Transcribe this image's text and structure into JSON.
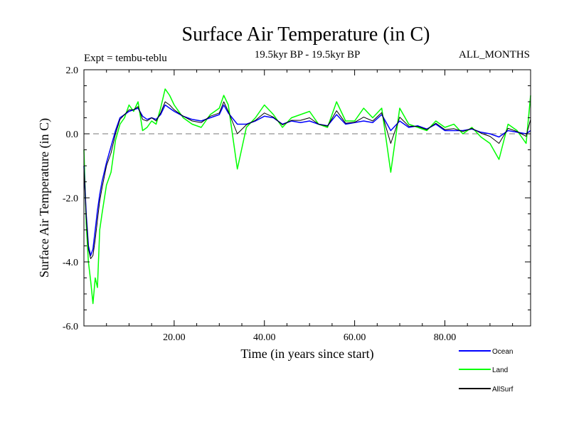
{
  "chart_data": {
    "type": "line",
    "title": "Surface Air Temperature (in C)",
    "subtitle_left": "Expt = tembu-teblu",
    "subtitle_center": "19.5kyr BP - 19.5kyr BP",
    "subtitle_right": "ALL_MONTHS",
    "xlabel": "Time (in years since start)",
    "ylabel": "Surface Air Temperature (in C)",
    "xlim": [
      0,
      99
    ],
    "ylim": [
      -6,
      2
    ],
    "x_ticks": [
      20,
      40,
      60,
      80
    ],
    "x_tick_labels": [
      "20.00",
      "40.00",
      "60.00",
      "80.00"
    ],
    "y_ticks": [
      2,
      0,
      -2,
      -4,
      -6
    ],
    "y_tick_labels": [
      "2.0",
      "0.0",
      "-2.0",
      "-4.0",
      "-6.0"
    ],
    "reference_line": 0,
    "series": [
      {
        "name": "Ocean",
        "color": "#0000ff",
        "x": [
          0,
          0.5,
          1,
          1.5,
          2,
          2.5,
          3,
          3.5,
          4,
          5,
          6,
          7,
          8,
          9,
          10,
          11,
          12,
          13,
          14,
          15,
          16,
          17,
          18,
          19,
          20,
          22,
          24,
          26,
          28,
          30,
          31,
          32,
          34,
          36,
          38,
          40,
          42,
          44,
          46,
          48,
          50,
          52,
          54,
          56,
          58,
          60,
          62,
          64,
          66,
          68,
          70,
          72,
          74,
          76,
          78,
          80,
          82,
          84,
          86,
          88,
          90,
          92,
          94,
          96,
          98,
          99
        ],
        "values": [
          -1.0,
          -2.5,
          -3.5,
          -3.8,
          -3.6,
          -3.0,
          -2.4,
          -1.9,
          -1.5,
          -0.9,
          -0.4,
          0.1,
          0.5,
          0.6,
          0.7,
          0.75,
          0.8,
          0.55,
          0.45,
          0.5,
          0.45,
          0.6,
          0.9,
          0.8,
          0.7,
          0.55,
          0.45,
          0.4,
          0.5,
          0.6,
          0.9,
          0.65,
          0.3,
          0.3,
          0.4,
          0.55,
          0.5,
          0.3,
          0.4,
          0.35,
          0.4,
          0.3,
          0.25,
          0.6,
          0.3,
          0.35,
          0.4,
          0.35,
          0.6,
          0.1,
          0.4,
          0.2,
          0.25,
          0.15,
          0.3,
          0.1,
          0.1,
          0.1,
          0.15,
          0.05,
          0.0,
          -0.1,
          0.1,
          0.05,
          0.0,
          0.1
        ]
      },
      {
        "name": "Land",
        "color": "#00ff00",
        "x": [
          0,
          0.5,
          1,
          1.5,
          2,
          2.5,
          3,
          3.5,
          4,
          5,
          6,
          7,
          8,
          9,
          10,
          11,
          12,
          13,
          14,
          15,
          16,
          17,
          18,
          19,
          20,
          22,
          24,
          26,
          28,
          30,
          31,
          32,
          34,
          36,
          38,
          40,
          42,
          44,
          46,
          48,
          50,
          52,
          54,
          56,
          58,
          60,
          62,
          64,
          66,
          68,
          70,
          72,
          74,
          76,
          78,
          80,
          82,
          84,
          86,
          88,
          90,
          92,
          94,
          96,
          98,
          99
        ],
        "values": [
          -0.5,
          -2.8,
          -4.0,
          -4.6,
          -5.3,
          -4.5,
          -4.8,
          -3.0,
          -2.5,
          -1.6,
          -1.2,
          -0.2,
          0.3,
          0.5,
          0.9,
          0.7,
          1.0,
          0.1,
          0.2,
          0.4,
          0.3,
          0.8,
          1.4,
          1.2,
          0.9,
          0.5,
          0.3,
          0.2,
          0.6,
          0.8,
          1.2,
          0.9,
          -1.1,
          0.2,
          0.5,
          0.9,
          0.6,
          0.2,
          0.5,
          0.6,
          0.7,
          0.3,
          0.2,
          1.0,
          0.4,
          0.4,
          0.8,
          0.5,
          0.8,
          -1.2,
          0.8,
          0.3,
          0.2,
          0.1,
          0.4,
          0.2,
          0.3,
          0.0,
          0.2,
          -0.1,
          -0.3,
          -0.8,
          0.3,
          0.1,
          -0.3,
          1.2
        ]
      },
      {
        "name": "AllSurf",
        "color": "#000000",
        "x": [
          0,
          0.5,
          1,
          1.5,
          2,
          2.5,
          3,
          3.5,
          4,
          5,
          6,
          7,
          8,
          9,
          10,
          11,
          12,
          13,
          14,
          15,
          16,
          17,
          18,
          19,
          20,
          22,
          24,
          26,
          28,
          30,
          31,
          32,
          34,
          36,
          38,
          40,
          42,
          44,
          46,
          48,
          50,
          52,
          54,
          56,
          58,
          60,
          62,
          64,
          66,
          68,
          70,
          72,
          74,
          76,
          78,
          80,
          82,
          84,
          86,
          88,
          90,
          92,
          94,
          96,
          98,
          99
        ],
        "values": [
          -1.0,
          -2.6,
          -3.6,
          -3.9,
          -3.8,
          -3.3,
          -2.7,
          -2.1,
          -1.7,
          -1.0,
          -0.6,
          0.0,
          0.45,
          0.6,
          0.75,
          0.75,
          0.85,
          0.45,
          0.4,
          0.5,
          0.4,
          0.65,
          1.0,
          0.9,
          0.75,
          0.55,
          0.4,
          0.35,
          0.55,
          0.65,
          1.0,
          0.7,
          0.0,
          0.28,
          0.42,
          0.65,
          0.52,
          0.28,
          0.42,
          0.42,
          0.5,
          0.3,
          0.24,
          0.72,
          0.33,
          0.36,
          0.52,
          0.4,
          0.66,
          -0.3,
          0.52,
          0.24,
          0.23,
          0.13,
          0.33,
          0.13,
          0.16,
          0.07,
          0.17,
          0.02,
          -0.08,
          -0.3,
          0.17,
          0.07,
          -0.08,
          0.45
        ]
      }
    ],
    "legend": {
      "placement": "bottom-right",
      "entries": [
        {
          "label": "Ocean",
          "color": "#0000ff"
        },
        {
          "label": "Land",
          "color": "#00ff00"
        },
        {
          "label": "AllSurf",
          "color": "#000000"
        }
      ]
    }
  }
}
